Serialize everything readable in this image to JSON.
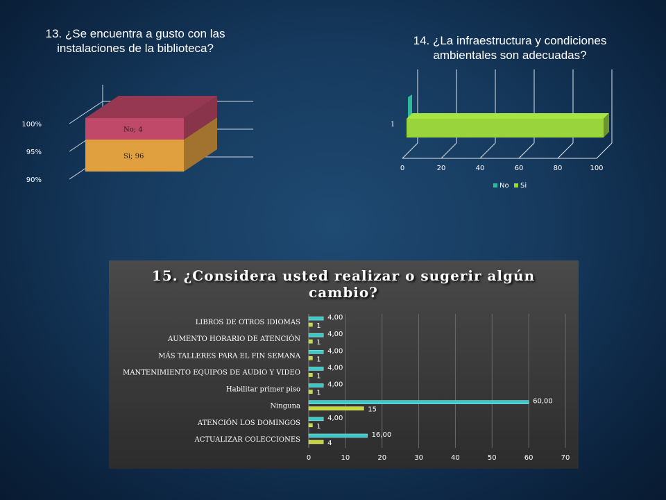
{
  "chart_data": [
    {
      "type": "bar",
      "stacked": true,
      "title": "13. ¿Se encuentra a gusto con las instalaciones de la biblioteca?",
      "yticks": [
        "90%",
        "95%",
        "100%"
      ],
      "segments": [
        {
          "label": "Si; 96",
          "color": "#e0a040"
        },
        {
          "label": "No; 4",
          "color": "#c04868"
        }
      ]
    },
    {
      "type": "bar",
      "orientation": "horizontal",
      "title": "14. ¿La infraestructura y condiciones ambientales son adecuadas?",
      "categories": [
        "1"
      ],
      "series": [
        {
          "name": "No",
          "values": [
            0
          ],
          "color": "#2fb89a"
        },
        {
          "name": "Si",
          "values": [
            100
          ],
          "color": "#9ad43c"
        }
      ],
      "xlim": [
        0,
        100
      ],
      "xticks": [
        "0",
        "20",
        "40",
        "60",
        "80",
        "100"
      ],
      "legend": "bottom"
    },
    {
      "type": "bar",
      "orientation": "horizontal",
      "title": "15. ¿Considera usted realizar o sugerir algún cambio?",
      "categories": [
        "LIBROS DE OTROS IDIOMAS",
        "AUMENTO HORARIO DE ATENCIÓN",
        "MÁS TALLERES PARA EL FIN SEMANA",
        "MANTENIMIENTO EQUIPOS DE AUDIO Y VIDEO",
        "Habilitar primer piso",
        "Ninguna",
        "ATENCIÓN LOS DOMINGOS",
        "ACTUALIZAR COLECCIONES"
      ],
      "series": [
        {
          "values": [
            4,
            4,
            4,
            4,
            4,
            60,
            4,
            16
          ],
          "labels": [
            "4,00",
            "4,00",
            "4,00",
            "4,00",
            "4,00",
            "60,00",
            "4,00",
            "16,00"
          ],
          "color": "#3cc8c8"
        },
        {
          "values": [
            1,
            1,
            1,
            1,
            1,
            15,
            1,
            4
          ],
          "labels": [
            "1",
            "1",
            "1",
            "1",
            "1",
            "15",
            "1",
            "4"
          ],
          "color": "#c8d83c"
        }
      ],
      "xlim": [
        0,
        70
      ],
      "xticks": [
        "0",
        "10",
        "20",
        "30",
        "40",
        "50",
        "60",
        "70"
      ]
    }
  ]
}
